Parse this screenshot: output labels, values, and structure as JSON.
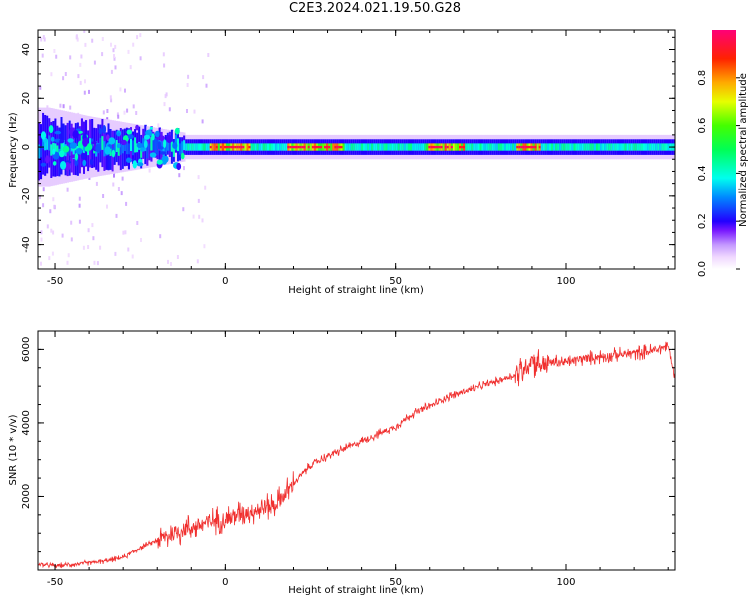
{
  "title": "C2E3.2024.021.19.50.G28",
  "chart_data": [
    {
      "type": "heatmap",
      "title": "",
      "xlabel": "Height of straight line (km)",
      "ylabel": "Frequency (Hz)",
      "xlim": [
        -55,
        132
      ],
      "ylim": [
        -50,
        48
      ],
      "xticks": [
        -50,
        0,
        50,
        100
      ],
      "yticks": [
        -40,
        -20,
        0,
        20,
        40
      ],
      "colorbar": {
        "label": "Normalized spectral amplitude",
        "range": [
          0,
          1
        ],
        "ticks": [
          0.0,
          0.2,
          0.4,
          0.6,
          0.8
        ],
        "colormap": "rainbow"
      },
      "ridge": {
        "center_hz": 0,
        "noisy_until_km": -12,
        "high_amplitude_segments_km": [
          [
            -5,
            7
          ],
          [
            18,
            35
          ],
          [
            59,
            70
          ],
          [
            85,
            92
          ]
        ],
        "description_points": [
          {
            "x": -52,
            "bandwidth_hz": 18,
            "amplitude": 0.2
          },
          {
            "x": -40,
            "bandwidth_hz": 14,
            "amplitude": 0.3
          },
          {
            "x": -25,
            "bandwidth_hz": 10,
            "amplitude": 0.4
          },
          {
            "x": -10,
            "bandwidth_hz": 6,
            "amplitude": 0.55
          },
          {
            "x": 0,
            "bandwidth_hz": 5,
            "amplitude": 0.75
          },
          {
            "x": 25,
            "bandwidth_hz": 5,
            "amplitude": 0.9
          },
          {
            "x": 50,
            "bandwidth_hz": 5,
            "amplitude": 0.7
          },
          {
            "x": 65,
            "bandwidth_hz": 5,
            "amplitude": 0.9
          },
          {
            "x": 88,
            "bandwidth_hz": 5,
            "amplitude": 0.85
          },
          {
            "x": 110,
            "bandwidth_hz": 5,
            "amplitude": 0.7
          },
          {
            "x": 130,
            "bandwidth_hz": 5,
            "amplitude": 0.6
          }
        ]
      }
    },
    {
      "type": "line",
      "title": "",
      "xlabel": "Height of straight line (km)",
      "ylabel": "SNR (10 * v/v)",
      "xlim": [
        -55,
        132
      ],
      "ylim": [
        0,
        6500
      ],
      "xticks": [
        -50,
        0,
        50,
        100
      ],
      "yticks": [
        2000,
        4000,
        6000
      ],
      "color": "#f0302f",
      "series": [
        {
          "x": [
            -55,
            -50,
            -45,
            -40,
            -35,
            -30,
            -25,
            -20,
            -15,
            -10,
            -5,
            0,
            5,
            10,
            15,
            20,
            25,
            30,
            35,
            40,
            45,
            50,
            55,
            60,
            65,
            70,
            75,
            80,
            85,
            88,
            90,
            92,
            95,
            100,
            105,
            110,
            115,
            120,
            125,
            130,
            132
          ],
          "y": [
            150,
            120,
            150,
            200,
            250,
            350,
            600,
            800,
            1000,
            1150,
            1300,
            1400,
            1550,
            1650,
            1800,
            2350,
            2850,
            3100,
            3300,
            3500,
            3700,
            3900,
            4250,
            4450,
            4700,
            4850,
            5000,
            5150,
            5300,
            5500,
            5750,
            5600,
            5650,
            5650,
            5750,
            5800,
            5850,
            5900,
            5950,
            6100,
            5200
          ]
        }
      ]
    }
  ]
}
